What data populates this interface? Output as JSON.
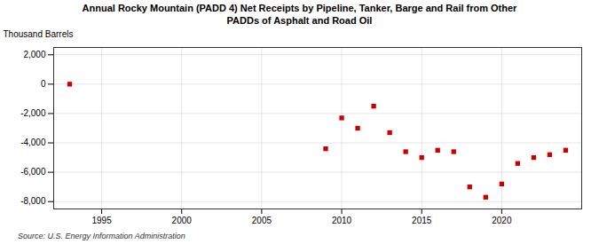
{
  "chart_data": {
    "type": "scatter",
    "title": "Annual Rocky Mountain (PADD 4) Net Receipts by Pipeline, Tanker, Barge and Rail from Other\nPADDs of Asphalt and Road Oil",
    "ylabel": "Thousand Barrels",
    "source": "Source:  U.S. Energy Information Administration",
    "x": [
      1993,
      2009,
      2010,
      2011,
      2012,
      2013,
      2014,
      2015,
      2016,
      2017,
      2018,
      2019,
      2020,
      2021,
      2022,
      2023,
      2024
    ],
    "values": [
      0,
      -4400,
      -2300,
      -3000,
      -1500,
      -3300,
      -4600,
      -5000,
      -4500,
      -4600,
      -7000,
      -7700,
      -6800,
      -5400,
      -5000,
      -4800,
      -4500
    ],
    "color": "#cc0000",
    "marker": "square",
    "grid": true,
    "xlim": [
      1992,
      2025
    ],
    "ylim": [
      -8500,
      2500
    ],
    "xticks": [
      1995,
      2000,
      2005,
      2010,
      2015,
      2020
    ],
    "yticks": [
      {
        "value": 2000,
        "label": "2,000"
      },
      0,
      {
        "value": -2000,
        "label": "-2,000"
      },
      {
        "value": -4000,
        "label": "-4,000"
      },
      {
        "value": -6000,
        "label": "-6,000"
      },
      {
        "value": -8000,
        "label": "-8,000"
      }
    ]
  }
}
